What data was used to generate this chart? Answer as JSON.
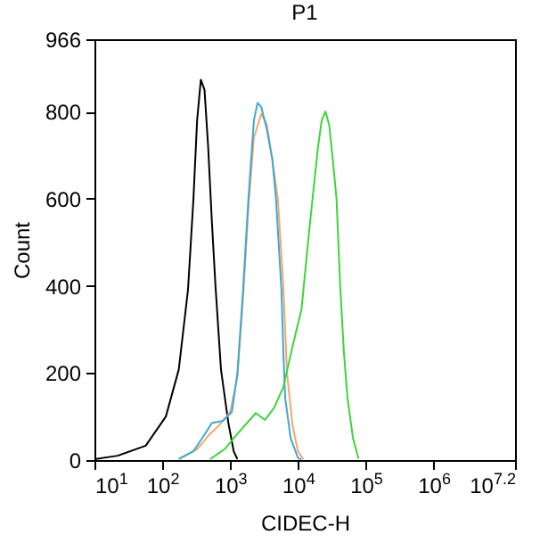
{
  "chart_data": {
    "type": "line",
    "title": "P1",
    "xlabel": "CIDEC-H",
    "ylabel": "Count",
    "log": "x",
    "xlim": [
      10,
      15848932
    ],
    "xticks": [
      {
        "value": 10,
        "label": "10$^{1}$"
      },
      {
        "value": 100,
        "label": "10$^{2}$"
      },
      {
        "value": 1000,
        "label": "10$^{3}$"
      },
      {
        "value": 10000,
        "label": "10$^{4}$"
      },
      {
        "value": 100000,
        "label": "10$^{5}$"
      },
      {
        "value": 1000000,
        "label": "10$^{6}$"
      },
      {
        "value": 15848932,
        "label": "10$^{7.2}$"
      }
    ],
    "ylim": [
      0,
      966
    ],
    "yticks": [
      0,
      200,
      400,
      600,
      800,
      966
    ],
    "series": [
      {
        "color": "#000000",
        "x": [
          10,
          22,
          57,
          113,
          175,
          239,
          288,
          326,
          370,
          419,
          474,
          537,
          608,
          733,
          940,
          1130,
          1280
        ],
        "values": [
          2,
          10,
          33,
          100,
          208,
          390,
          600,
          780,
          873,
          850,
          720,
          550,
          400,
          208,
          86,
          20,
          2
        ]
      },
      {
        "color": "#f4a86a",
        "x": [
          175,
          326,
          505,
          689,
          1000,
          1280,
          1550,
          1860,
          2240,
          2880,
          3470,
          4190,
          5050,
          6080,
          6890,
          8300,
          10000,
          12000
        ],
        "values": [
          2,
          25,
          60,
          80,
          110,
          190,
          370,
          580,
          740,
          795,
          770,
          690,
          600,
          400,
          200,
          80,
          20,
          2
        ]
      },
      {
        "color": "#3ea8d8",
        "x": [
          175,
          288,
          446,
          537,
          780,
          1060,
          1280,
          1550,
          1860,
          2240,
          2540,
          2880,
          3470,
          4190,
          4740,
          5710,
          6080,
          6470,
          7800,
          10000,
          11300
        ],
        "values": [
          3,
          20,
          65,
          85,
          90,
          110,
          200,
          390,
          600,
          780,
          820,
          810,
          760,
          690,
          600,
          390,
          250,
          143,
          50,
          5,
          1
        ]
      },
      {
        "color": "#3dd43d",
        "x": [
          505,
          830,
          1280,
          2390,
          3260,
          4450,
          6080,
          8300,
          11300,
          14500,
          16400,
          19800,
          22400,
          25400,
          28800,
          32600,
          37000,
          41900,
          47400,
          53700,
          64700,
          78000
        ],
        "values": [
          2,
          25,
          60,
          108,
          92,
          120,
          167,
          260,
          347,
          520,
          600,
          720,
          780,
          800,
          770,
          690,
          600,
          400,
          250,
          143,
          50,
          3
        ]
      }
    ]
  }
}
